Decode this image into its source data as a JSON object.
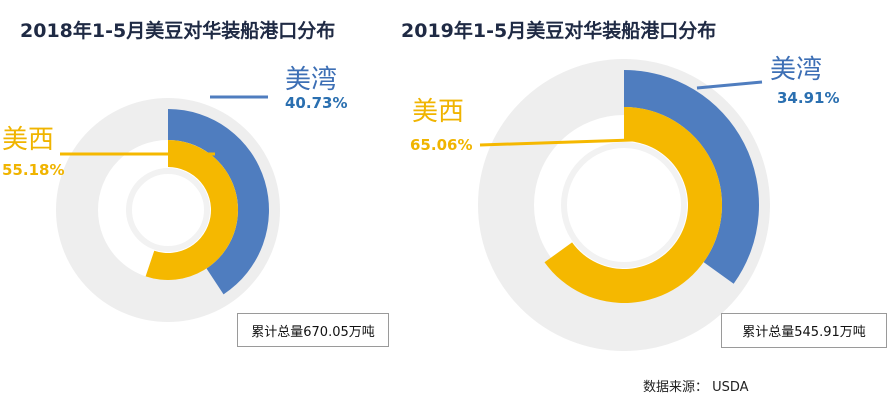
{
  "chart_data": [
    {
      "type": "donut",
      "title": "2018年1-5月美豆对华装船港口分布",
      "series": [
        {
          "name": "美湾",
          "value": 40.73,
          "label": "40.73%",
          "color": "#4f7dbf"
        },
        {
          "name": "美西",
          "value": 55.18,
          "label": "55.18%",
          "color": "#f5b800"
        }
      ],
      "total": "累计总量670.05万吨"
    },
    {
      "type": "donut",
      "title": "2019年1-5月美豆对华装船港口分布",
      "series": [
        {
          "name": "美湾",
          "value": 34.91,
          "label": "34.91%",
          "color": "#4f7dbf"
        },
        {
          "name": "美西",
          "value": 65.06,
          "label": "65.06%",
          "color": "#f5b800"
        }
      ],
      "total": "累计总量545.91万吨"
    }
  ],
  "source": "数据来源： USDA",
  "colors": {
    "gulf": "#4f7dbf",
    "pnw": "#f5b800",
    "ring_bg": "#eeeeee"
  }
}
